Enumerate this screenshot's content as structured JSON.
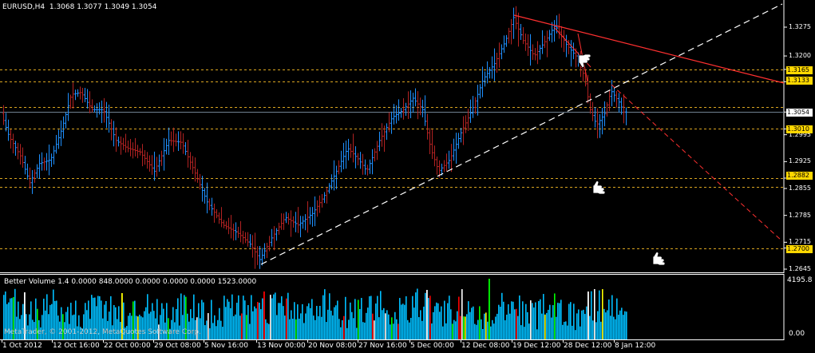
{
  "window": {
    "symbol_title": "EURUSD,H4",
    "ohlc": "1.3068 1.3077 1.3049 1.3054"
  },
  "price_axis": {
    "labels": [
      "1.3275",
      "1.3200",
      "1.3165",
      "1.3133",
      "1.3054",
      "1.3010",
      "1.2995",
      "1.2925",
      "1.2882",
      "1.2855",
      "1.2785",
      "1.2715",
      "1.2700",
      "1.2645"
    ],
    "tagged": {
      "p1": "1.3165",
      "p2": "1.3133",
      "current": "1.3054",
      "p3": "1.3010",
      "p4": "1.2882",
      "p5": "1.2700"
    }
  },
  "volume": {
    "indicator_title": "Better Volume 1.4 0.0000 848.0000 0.0000 0.0000 0.0000 1523.0000",
    "scale_max": "4195.8",
    "scale_min": "0.00"
  },
  "watermark": "MetaTrader, © 2001-2012, MetaQuotes Software Corp.",
  "time_axis": [
    "1 Oct 2012",
    "12 Oct 16:00",
    "22 Oct 00:00",
    "29 Oct 08:00",
    "5 Nov 16:00",
    "13 Nov 00:00",
    "20 Nov 08:00",
    "27 Nov 16:00",
    "5 Dec 00:00",
    "12 Dec 08:00",
    "19 Dec 12:00",
    "28 Dec 12:00",
    "8 Jan 12:00"
  ],
  "colors": {
    "bull": "#1E90FF",
    "bear": "#B22222",
    "level_line": "#DAA520",
    "tag_bg": "#FFD700",
    "trendline_white": "#FFFFFF",
    "trendline_red": "#FF3030",
    "vol_blue": "#00BFFF",
    "vol_white": "#FFFFFF",
    "vol_green": "#00FF00",
    "vol_red": "#FF0000",
    "vol_yellow": "#FFFF00"
  },
  "icons": [
    "thumbs-down-icon",
    "thumbs-up-icon",
    "thumbs-up-icon"
  ]
}
